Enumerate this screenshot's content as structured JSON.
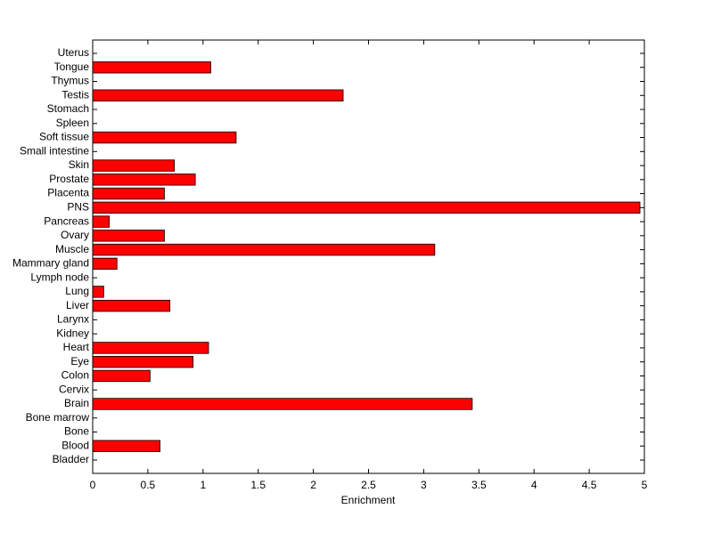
{
  "chart_data": {
    "type": "barh",
    "xlabel": "Enrichment",
    "categories": [
      "Bladder",
      "Blood",
      "Bone",
      "Bone marrow",
      "Brain",
      "Cervix",
      "Colon",
      "Eye",
      "Heart",
      "Kidney",
      "Larynx",
      "Liver",
      "Lung",
      "Lymph node",
      "Mammary gland",
      "Muscle",
      "Ovary",
      "Pancreas",
      "PNS",
      "Placenta",
      "Prostate",
      "Skin",
      "Small intestine",
      "Soft tissue",
      "Spleen",
      "Stomach",
      "Testis",
      "Thymus",
      "Tongue",
      "Uterus"
    ],
    "values": [
      0,
      0.61,
      0,
      0,
      3.44,
      0,
      0.52,
      0.91,
      1.05,
      0,
      0,
      0.7,
      0.1,
      0,
      0.22,
      3.1,
      0.65,
      0.15,
      4.96,
      0.65,
      0.93,
      0.74,
      0,
      1.3,
      0,
      0,
      2.27,
      0,
      1.07,
      0
    ],
    "color": "#ff0000",
    "xlim": [
      0,
      5
    ],
    "xticks": [
      0,
      0.5,
      1,
      1.5,
      2,
      2.5,
      3,
      3.5,
      4,
      4.5,
      5
    ]
  }
}
